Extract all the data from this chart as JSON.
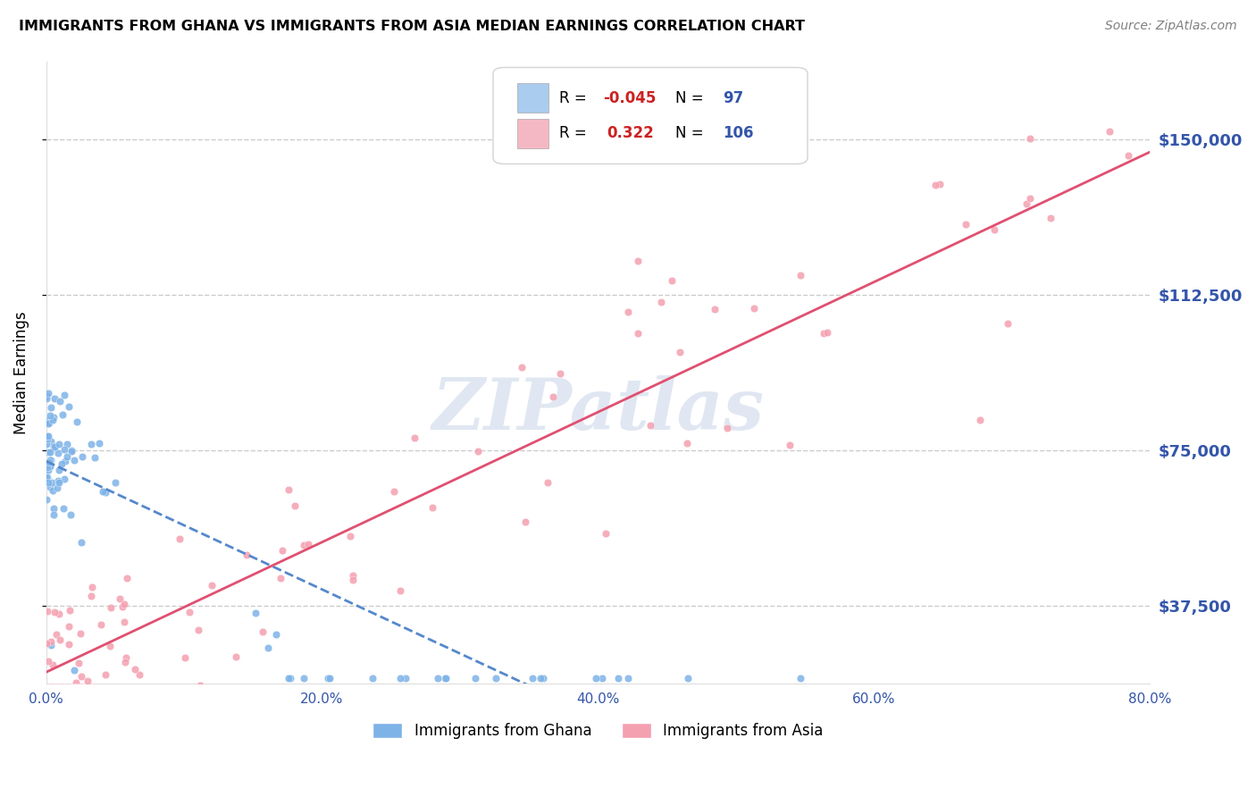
{
  "title": "IMMIGRANTS FROM GHANA VS IMMIGRANTS FROM ASIA MEDIAN EARNINGS CORRELATION CHART",
  "source": "Source: ZipAtlas.com",
  "ylabel": "Median Earnings",
  "xlim": [
    0.0,
    0.8
  ],
  "ylim": [
    18750,
    168750
  ],
  "yticks": [
    37500,
    75000,
    112500,
    150000
  ],
  "ytick_labels": [
    "$37,500",
    "$75,000",
    "$112,500",
    "$150,000"
  ],
  "xticks": [
    0.0,
    0.2,
    0.4,
    0.6,
    0.8
  ],
  "xtick_labels": [
    "0.0%",
    "20.0%",
    "40.0%",
    "60.0%",
    "80.0%"
  ],
  "ghana_color": "#7eb3e8",
  "asia_color": "#f4a0b0",
  "ghana_R": -0.045,
  "ghana_N": 97,
  "asia_R": 0.322,
  "asia_N": 106,
  "ghana_line_color": "#5588cc",
  "asia_line_color": "#e05070",
  "grid_color": "#cccccc",
  "label_color": "#3355aa",
  "background_color": "#ffffff",
  "watermark": "ZIPatlas",
  "watermark_color": "#c8d4e8",
  "legend_box_color_ghana": "#aaccee",
  "legend_box_color_asia": "#f4b8c4",
  "ghana_legend_R": "-0.045",
  "ghana_legend_N": "97",
  "asia_legend_R": "0.322",
  "asia_legend_N": "106"
}
